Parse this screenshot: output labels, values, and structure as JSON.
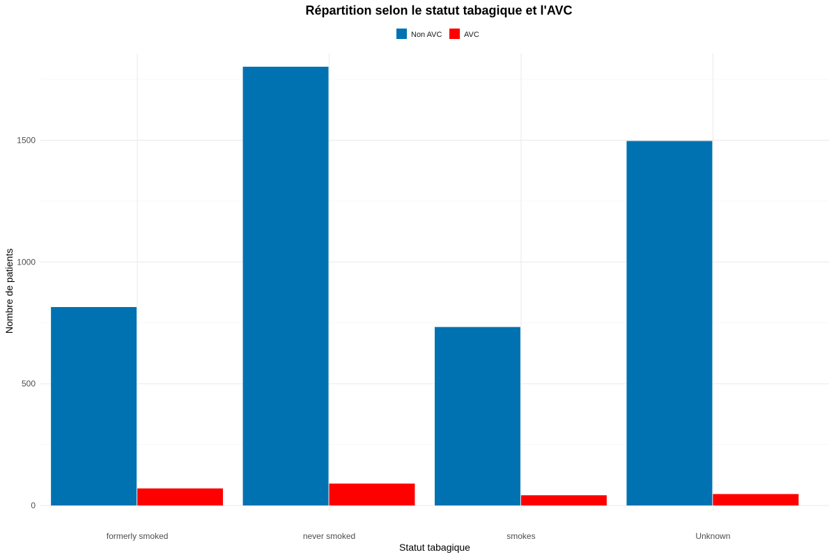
{
  "chart_data": {
    "type": "bar",
    "title": "Répartition selon le statut tabagique et l'AVC",
    "xlabel": "Statut tabagique",
    "ylabel": "Nombre de patients",
    "categories": [
      "formerly smoked",
      "never smoked",
      "smokes",
      "Unknown"
    ],
    "series": [
      {
        "name": "Non AVC",
        "color": "#0072b2",
        "values": [
          815,
          1802,
          733,
          1497
        ]
      },
      {
        "name": "AVC",
        "color": "#ff0000",
        "values": [
          70,
          90,
          42,
          47
        ]
      }
    ],
    "ylim": [
      0,
      1900
    ],
    "yticks": [
      0,
      500,
      1000,
      1500
    ],
    "yticks_minor": [
      250,
      750,
      1250,
      1750
    ],
    "grid": true,
    "legend_position": "top"
  }
}
